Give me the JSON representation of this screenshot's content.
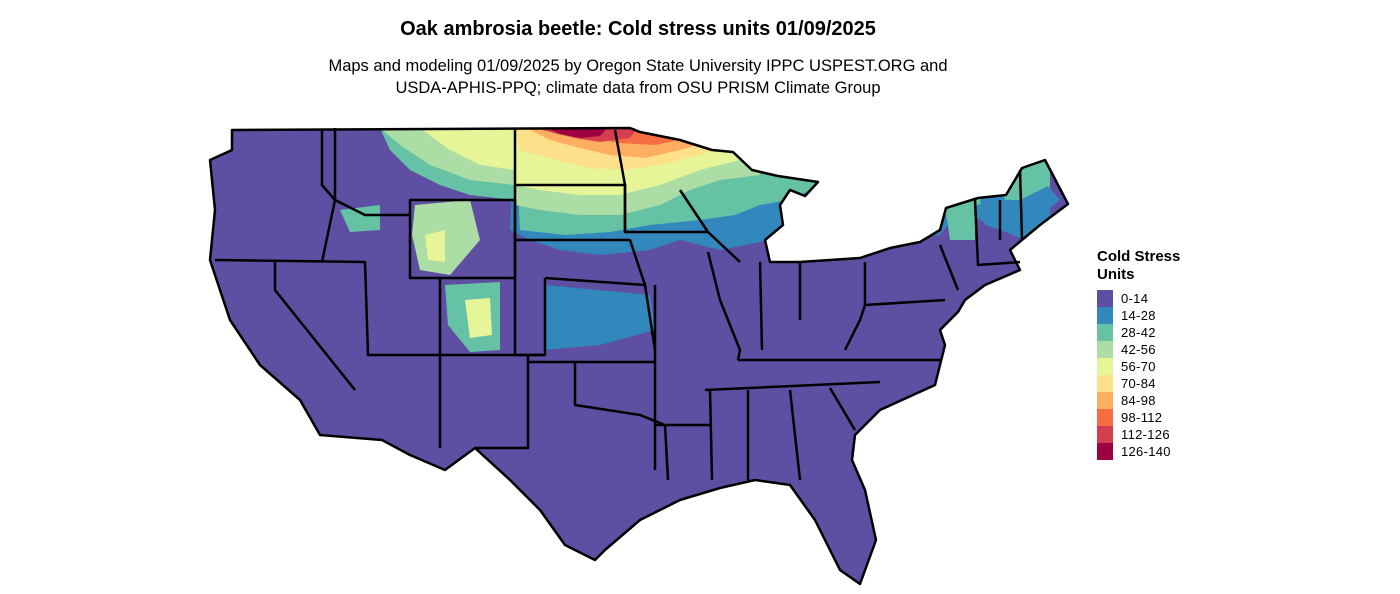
{
  "title": "Oak ambrosia beetle: Cold stress units 01/09/2025",
  "subtitle": {
    "line1": "Maps and modeling 01/09/2025 by Oregon State University IPPC USPEST.ORG and",
    "line2": "USDA-APHIS-PPQ; climate data from OSU PRISM Climate Group"
  },
  "legend": {
    "title": "Cold Stress Units",
    "items": [
      {
        "label": "0-14",
        "color": "#5e4fa2"
      },
      {
        "label": "14-28",
        "color": "#3288bd"
      },
      {
        "label": "28-42",
        "color": "#66c2a5"
      },
      {
        "label": "42-56",
        "color": "#abdda4"
      },
      {
        "label": "56-70",
        "color": "#e6f598"
      },
      {
        "label": "70-84",
        "color": "#fee08b"
      },
      {
        "label": "84-98",
        "color": "#fdae61"
      },
      {
        "label": "98-112",
        "color": "#f46d43"
      },
      {
        "label": "112-126",
        "color": "#d53e4f"
      },
      {
        "label": "126-140",
        "color": "#9e0142"
      }
    ]
  }
}
